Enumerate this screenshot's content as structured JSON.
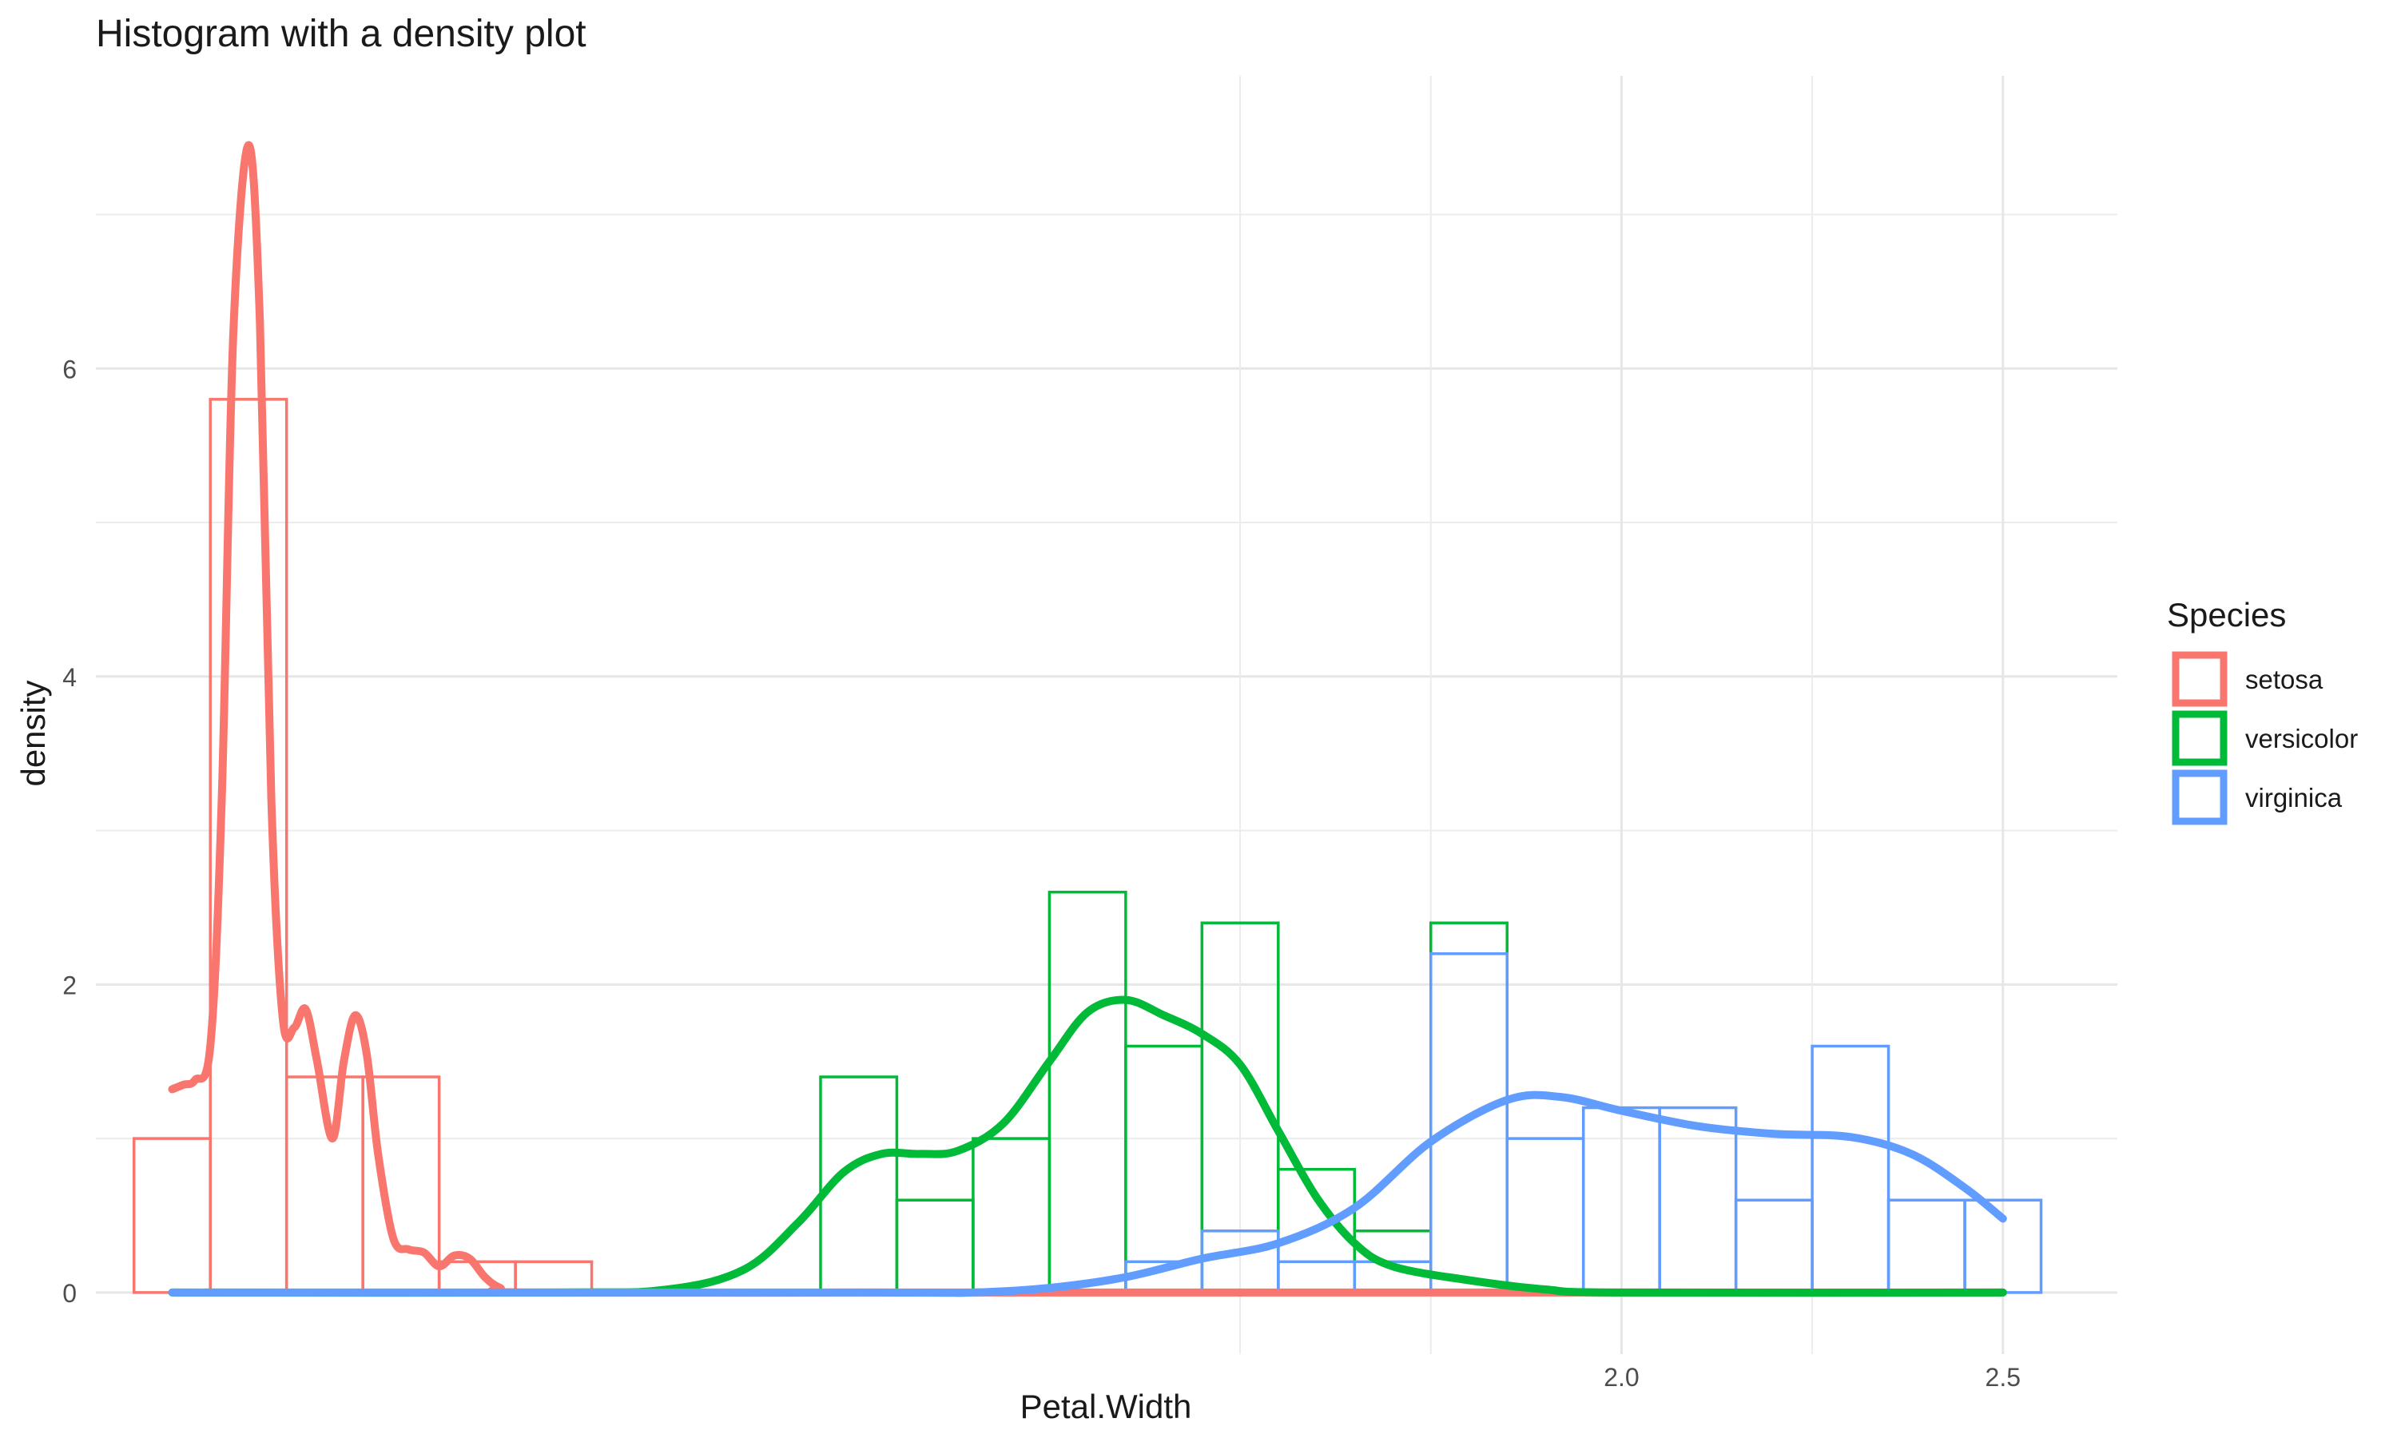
{
  "chart_data": {
    "type": "histogram",
    "title": "Histogram with a density plot",
    "xlabel": "Petal.Width",
    "ylabel": "density",
    "xlim": [
      0.0,
      2.65
    ],
    "ylim": [
      -0.4,
      7.9
    ],
    "xticks": [
      2.0,
      2.5
    ],
    "xtick_labels": [
      "2.0",
      "2.5"
    ],
    "x_minor_gridlines": [
      1.5,
      1.75,
      2.25
    ],
    "yticks": [
      0,
      2,
      4,
      6
    ],
    "ytick_labels": [
      "0",
      "2",
      "4",
      "6"
    ],
    "grid": true,
    "legend": {
      "title": "Species",
      "position": "right",
      "entries": [
        "setosa",
        "versicolor",
        "virginica"
      ]
    },
    "bin_width": 0.1,
    "series": [
      {
        "name": "setosa",
        "color": "#F8766D",
        "bins": [
          {
            "x0": 0.05,
            "x1": 0.15,
            "density": 1.0
          },
          {
            "x0": 0.15,
            "x1": 0.25,
            "density": 5.8
          },
          {
            "x0": 0.25,
            "x1": 0.35,
            "density": 1.4
          },
          {
            "x0": 0.35,
            "x1": 0.45,
            "density": 1.4
          },
          {
            "x0": 0.45,
            "x1": 0.55,
            "density": 0.2
          },
          {
            "x0": 0.55,
            "x1": 0.65,
            "density": 0.2
          }
        ],
        "density": [
          [
            0.1,
            1.32
          ],
          [
            0.115,
            1.35
          ],
          [
            0.13,
            1.38
          ],
          [
            0.15,
            1.6
          ],
          [
            0.165,
            3.2
          ],
          [
            0.18,
            6.2
          ],
          [
            0.2,
            7.45
          ],
          [
            0.215,
            6.3
          ],
          [
            0.23,
            3.2
          ],
          [
            0.245,
            1.78
          ],
          [
            0.26,
            1.72
          ],
          [
            0.275,
            1.84
          ],
          [
            0.29,
            1.5
          ],
          [
            0.31,
            1.0
          ],
          [
            0.325,
            1.5
          ],
          [
            0.34,
            1.8
          ],
          [
            0.355,
            1.55
          ],
          [
            0.37,
            0.9
          ],
          [
            0.39,
            0.35
          ],
          [
            0.41,
            0.28
          ],
          [
            0.43,
            0.26
          ],
          [
            0.45,
            0.17
          ],
          [
            0.47,
            0.24
          ],
          [
            0.49,
            0.22
          ],
          [
            0.51,
            0.1
          ],
          [
            0.53,
            0.03
          ],
          [
            0.56,
            0.0
          ],
          [
            1.0,
            0.0
          ],
          [
            1.5,
            0.0
          ],
          [
            2.0,
            0.0
          ],
          [
            2.5,
            0.0
          ]
        ]
      },
      {
        "name": "versicolor",
        "color": "#00BA38",
        "bins": [
          {
            "x0": 0.95,
            "x1": 1.05,
            "density": 1.4
          },
          {
            "x0": 1.05,
            "x1": 1.15,
            "density": 0.6
          },
          {
            "x0": 1.15,
            "x1": 1.25,
            "density": 1.0
          },
          {
            "x0": 1.25,
            "x1": 1.35,
            "density": 2.6
          },
          {
            "x0": 1.35,
            "x1": 1.45,
            "density": 1.6
          },
          {
            "x0": 1.45,
            "x1": 1.55,
            "density": 2.4
          },
          {
            "x0": 1.55,
            "x1": 1.65,
            "density": 0.8
          },
          {
            "x0": 1.65,
            "x1": 1.75,
            "density": 0.4
          },
          {
            "x0": 1.75,
            "x1": 1.85,
            "density": 2.4
          }
        ],
        "density": [
          [
            0.1,
            0.0
          ],
          [
            0.6,
            0.0
          ],
          [
            0.75,
            0.02
          ],
          [
            0.85,
            0.15
          ],
          [
            0.92,
            0.45
          ],
          [
            0.98,
            0.78
          ],
          [
            1.03,
            0.9
          ],
          [
            1.08,
            0.9
          ],
          [
            1.13,
            0.92
          ],
          [
            1.19,
            1.1
          ],
          [
            1.25,
            1.5
          ],
          [
            1.3,
            1.82
          ],
          [
            1.35,
            1.9
          ],
          [
            1.4,
            1.8
          ],
          [
            1.45,
            1.68
          ],
          [
            1.5,
            1.48
          ],
          [
            1.55,
            1.05
          ],
          [
            1.6,
            0.62
          ],
          [
            1.65,
            0.32
          ],
          [
            1.7,
            0.17
          ],
          [
            1.8,
            0.08
          ],
          [
            1.9,
            0.02
          ],
          [
            2.0,
            0.0
          ],
          [
            2.5,
            0.0
          ]
        ]
      },
      {
        "name": "virginica",
        "color": "#619CFF",
        "bins": [
          {
            "x0": 1.35,
            "x1": 1.45,
            "density": 0.2
          },
          {
            "x0": 1.45,
            "x1": 1.55,
            "density": 0.4
          },
          {
            "x0": 1.55,
            "x1": 1.65,
            "density": 0.2
          },
          {
            "x0": 1.65,
            "x1": 1.75,
            "density": 0.2
          },
          {
            "x0": 1.75,
            "x1": 1.85,
            "density": 2.2
          },
          {
            "x0": 1.85,
            "x1": 1.95,
            "density": 1.0
          },
          {
            "x0": 1.95,
            "x1": 2.05,
            "density": 1.2
          },
          {
            "x0": 2.05,
            "x1": 2.15,
            "density": 1.2
          },
          {
            "x0": 2.15,
            "x1": 2.25,
            "density": 0.6
          },
          {
            "x0": 2.25,
            "x1": 2.35,
            "density": 1.6
          },
          {
            "x0": 2.35,
            "x1": 2.45,
            "density": 0.6
          },
          {
            "x0": 2.45,
            "x1": 2.55,
            "density": 0.6
          }
        ],
        "density": [
          [
            0.1,
            0.0
          ],
          [
            1.0,
            0.0
          ],
          [
            1.15,
            0.0
          ],
          [
            1.25,
            0.03
          ],
          [
            1.35,
            0.1
          ],
          [
            1.45,
            0.22
          ],
          [
            1.55,
            0.32
          ],
          [
            1.65,
            0.55
          ],
          [
            1.75,
            0.98
          ],
          [
            1.85,
            1.25
          ],
          [
            1.92,
            1.27
          ],
          [
            2.0,
            1.18
          ],
          [
            2.1,
            1.08
          ],
          [
            2.2,
            1.03
          ],
          [
            2.3,
            1.01
          ],
          [
            2.38,
            0.9
          ],
          [
            2.45,
            0.68
          ],
          [
            2.5,
            0.48
          ]
        ]
      }
    ]
  }
}
